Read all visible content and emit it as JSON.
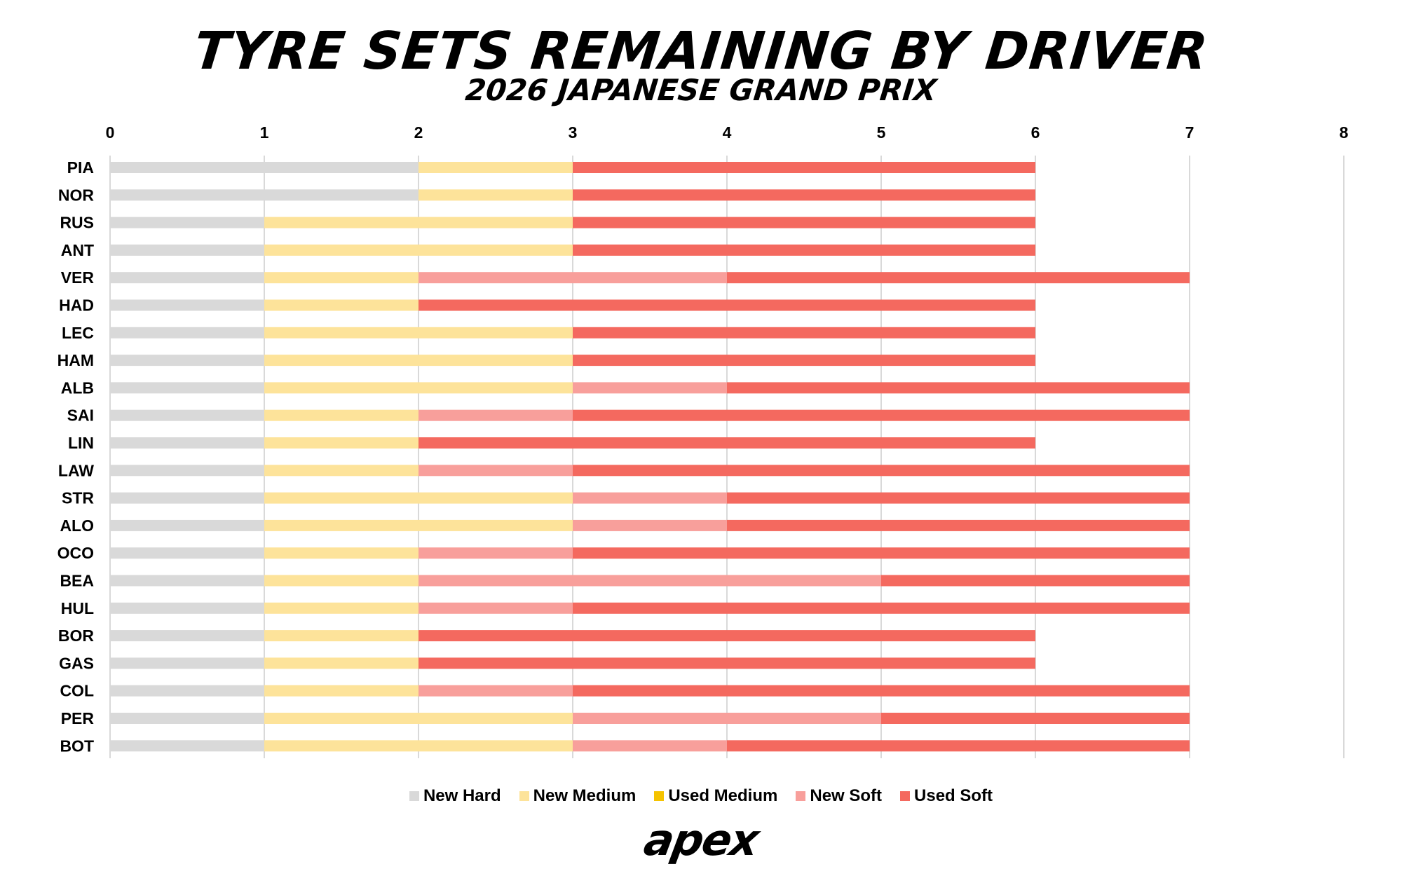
{
  "chart_data": {
    "type": "bar",
    "orientation": "horizontal",
    "stacked": true,
    "title": "TYRE SETS REMAINING BY DRIVER",
    "subtitle": "2026 JAPANESE GRAND PRIX",
    "xlabel": "",
    "ylabel": "",
    "xlim": [
      0,
      8
    ],
    "xticks": [
      0,
      1,
      2,
      3,
      4,
      5,
      6,
      7,
      8
    ],
    "grid": true,
    "legend_position": "bottom",
    "categories": [
      "PIA",
      "NOR",
      "RUS",
      "ANT",
      "VER",
      "HAD",
      "LEC",
      "HAM",
      "ALB",
      "SAI",
      "LIN",
      "LAW",
      "STR",
      "ALO",
      "OCO",
      "BEA",
      "HUL",
      "BOR",
      "GAS",
      "COL",
      "PER",
      "BOT"
    ],
    "series": [
      {
        "name": "New Hard",
        "color": "#d9d9d9",
        "values": [
          2,
          2,
          1,
          1,
          1,
          1,
          1,
          1,
          1,
          1,
          1,
          1,
          1,
          1,
          1,
          1,
          1,
          1,
          1,
          1,
          1,
          1
        ]
      },
      {
        "name": "New Medium",
        "color": "#fde39a",
        "values": [
          1,
          1,
          2,
          2,
          1,
          1,
          2,
          2,
          2,
          1,
          1,
          1,
          2,
          2,
          1,
          1,
          1,
          1,
          1,
          1,
          2,
          2
        ]
      },
      {
        "name": "Used Medium",
        "color": "#f5c300",
        "values": [
          0,
          0,
          0,
          0,
          0,
          0,
          0,
          0,
          0,
          0,
          0,
          0,
          0,
          0,
          0,
          0,
          0,
          0,
          0,
          0,
          0,
          0
        ]
      },
      {
        "name": "New Soft",
        "color": "#f89f9b",
        "values": [
          0,
          0,
          0,
          0,
          2,
          0,
          0,
          0,
          1,
          1,
          0,
          1,
          1,
          1,
          1,
          3,
          1,
          0,
          0,
          1,
          2,
          1
        ]
      },
      {
        "name": "Used Soft",
        "color": "#f4695f",
        "values": [
          3,
          3,
          3,
          3,
          3,
          4,
          3,
          3,
          3,
          4,
          4,
          4,
          3,
          3,
          4,
          2,
          4,
          4,
          4,
          4,
          2,
          3
        ]
      }
    ]
  },
  "branding": {
    "logo_text": "apex"
  }
}
